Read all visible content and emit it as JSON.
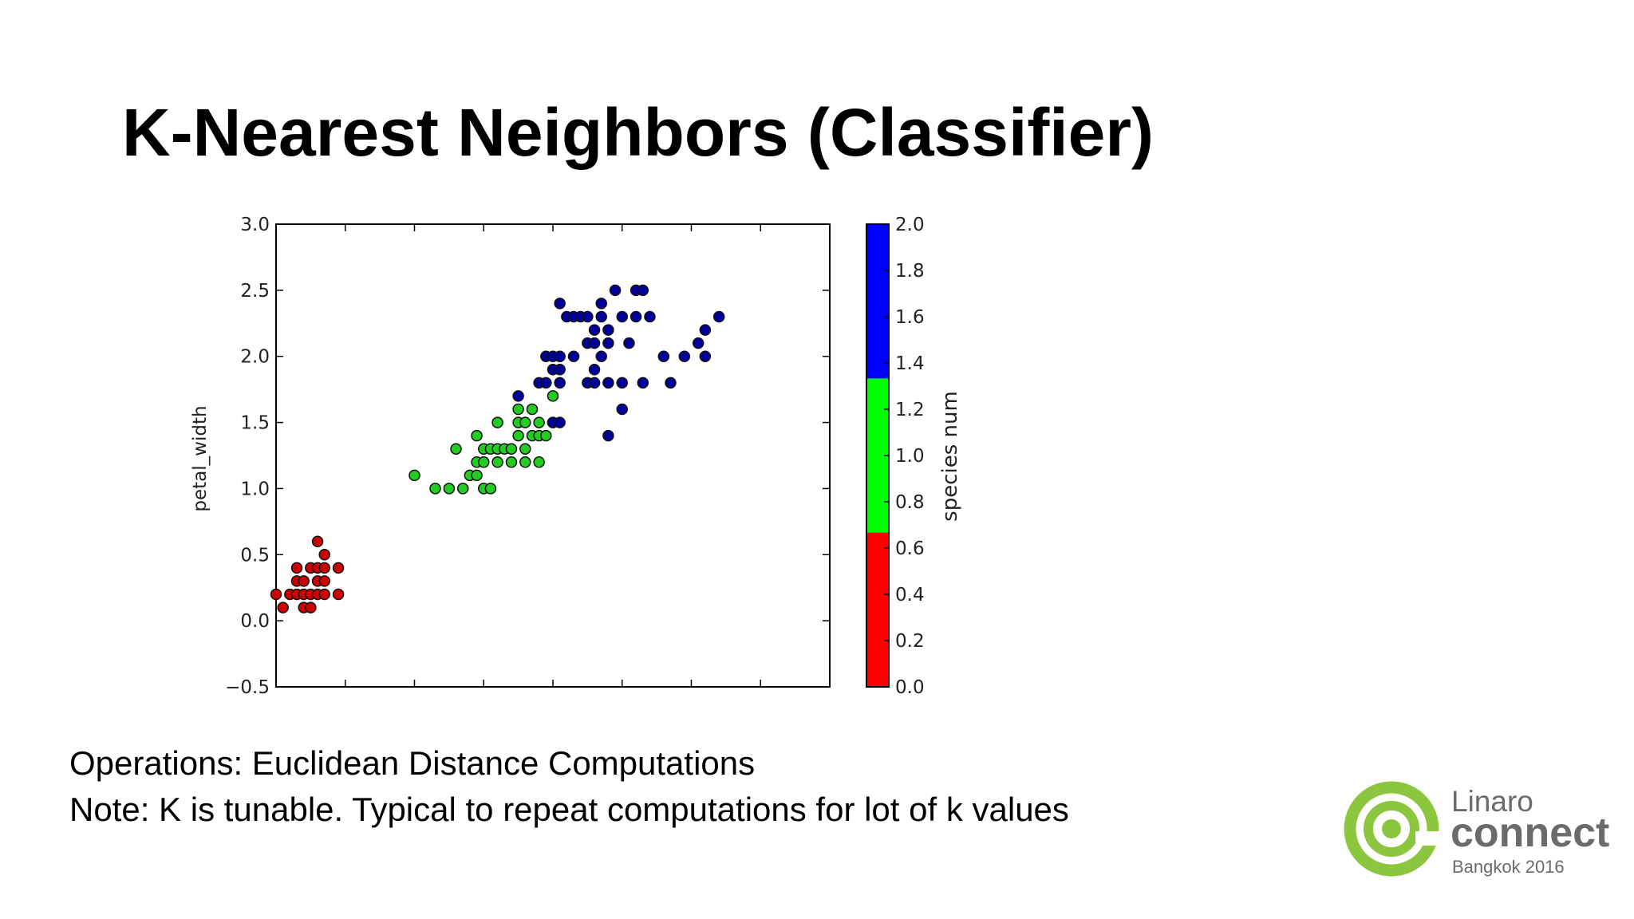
{
  "slide": {
    "title": "K-Nearest Neighbors (Classifier)",
    "notes": [
      "Operations: Euclidean Distance Computations",
      "Note: K is tunable. Typical to repeat computations for lot of k values"
    ]
  },
  "logo": {
    "brand": "Linaro",
    "product": "connect",
    "event": "Bangkok 2016",
    "icon": "linaro-logo-icon",
    "color": "#8cc63f"
  },
  "chart_data": {
    "type": "scatter",
    "ylabel": "petal_width",
    "xlim": [
      0,
      8
    ],
    "ylim": [
      -0.5,
      3.0
    ],
    "yticks": [
      "−0.5",
      "0.0",
      "0.5",
      "1.0",
      "1.5",
      "2.0",
      "2.5",
      "3.0"
    ],
    "yticks_values": [
      -0.5,
      0.0,
      0.5,
      1.0,
      1.5,
      2.0,
      2.5,
      3.0
    ],
    "xtick_values": [
      1,
      2,
      3,
      4,
      5,
      6,
      7
    ],
    "grid": false,
    "colorbar": {
      "label": "species num",
      "range": [
        0.0,
        2.0
      ],
      "ticks": [
        "0.0",
        "0.2",
        "0.4",
        "0.6",
        "0.8",
        "1.0",
        "1.2",
        "1.4",
        "1.6",
        "1.8",
        "2.0"
      ],
      "tick_values": [
        0.0,
        0.2,
        0.4,
        0.6,
        0.8,
        1.0,
        1.2,
        1.4,
        1.6,
        1.8,
        2.0
      ],
      "bands": [
        {
          "from": 0.0,
          "to": 0.667,
          "color": "#ff0000"
        },
        {
          "from": 0.667,
          "to": 1.333,
          "color": "#00ff00"
        },
        {
          "from": 1.333,
          "to": 2.0,
          "color": "#0000ff"
        }
      ]
    },
    "series": [
      {
        "color": "#cc0000",
        "points": [
          [
            0.0,
            0.2
          ],
          [
            0.1,
            0.1
          ],
          [
            0.2,
            0.2
          ],
          [
            0.3,
            0.2
          ],
          [
            0.3,
            0.3
          ],
          [
            0.3,
            0.4
          ],
          [
            0.4,
            0.1
          ],
          [
            0.4,
            0.2
          ],
          [
            0.4,
            0.3
          ],
          [
            0.5,
            0.1
          ],
          [
            0.5,
            0.2
          ],
          [
            0.5,
            0.4
          ],
          [
            0.6,
            0.2
          ],
          [
            0.6,
            0.3
          ],
          [
            0.6,
            0.4
          ],
          [
            0.6,
            0.6
          ],
          [
            0.7,
            0.2
          ],
          [
            0.7,
            0.3
          ],
          [
            0.7,
            0.5
          ],
          [
            0.7,
            0.4
          ],
          [
            0.9,
            0.2
          ],
          [
            0.9,
            0.4
          ]
        ]
      },
      {
        "color": "#22cc22",
        "points": [
          [
            2.0,
            1.1
          ],
          [
            2.3,
            1.0
          ],
          [
            2.5,
            1.0
          ],
          [
            2.6,
            1.3
          ],
          [
            2.7,
            1.0
          ],
          [
            2.8,
            1.1
          ],
          [
            2.9,
            1.1
          ],
          [
            2.9,
            1.2
          ],
          [
            2.9,
            1.4
          ],
          [
            3.0,
            1.0
          ],
          [
            3.0,
            1.2
          ],
          [
            3.0,
            1.3
          ],
          [
            3.1,
            1.0
          ],
          [
            3.1,
            1.3
          ],
          [
            3.2,
            1.2
          ],
          [
            3.2,
            1.3
          ],
          [
            3.2,
            1.5
          ],
          [
            3.3,
            1.3
          ],
          [
            3.4,
            1.2
          ],
          [
            3.4,
            1.3
          ],
          [
            3.5,
            1.4
          ],
          [
            3.5,
            1.5
          ],
          [
            3.5,
            1.6
          ],
          [
            3.6,
            1.2
          ],
          [
            3.6,
            1.3
          ],
          [
            3.6,
            1.5
          ],
          [
            3.7,
            1.4
          ],
          [
            3.7,
            1.6
          ],
          [
            3.8,
            1.2
          ],
          [
            3.8,
            1.4
          ],
          [
            3.8,
            1.5
          ],
          [
            3.9,
            1.4
          ],
          [
            4.0,
            1.5
          ],
          [
            4.0,
            1.7
          ]
        ]
      },
      {
        "color": "#000099",
        "points": [
          [
            3.5,
            1.7
          ],
          [
            3.8,
            1.8
          ],
          [
            3.9,
            1.8
          ],
          [
            3.9,
            2.0
          ],
          [
            4.0,
            1.5
          ],
          [
            4.0,
            1.9
          ],
          [
            4.0,
            2.0
          ],
          [
            4.1,
            1.5
          ],
          [
            4.1,
            1.8
          ],
          [
            4.1,
            1.9
          ],
          [
            4.1,
            2.0
          ],
          [
            4.1,
            2.4
          ],
          [
            4.2,
            2.3
          ],
          [
            4.3,
            2.3
          ],
          [
            4.3,
            2.0
          ],
          [
            4.4,
            2.3
          ],
          [
            4.5,
            2.3
          ],
          [
            4.5,
            2.1
          ],
          [
            4.5,
            1.8
          ],
          [
            4.6,
            1.8
          ],
          [
            4.6,
            2.1
          ],
          [
            4.6,
            2.2
          ],
          [
            4.6,
            1.9
          ],
          [
            4.7,
            2.0
          ],
          [
            4.7,
            2.3
          ],
          [
            4.7,
            2.4
          ],
          [
            4.8,
            2.1
          ],
          [
            4.8,
            1.8
          ],
          [
            4.8,
            2.2
          ],
          [
            4.8,
            1.4
          ],
          [
            4.9,
            2.5
          ],
          [
            5.0,
            2.3
          ],
          [
            5.0,
            1.6
          ],
          [
            5.0,
            1.8
          ],
          [
            5.1,
            2.1
          ],
          [
            5.2,
            2.3
          ],
          [
            5.2,
            2.5
          ],
          [
            5.3,
            2.5
          ],
          [
            5.3,
            1.8
          ],
          [
            5.4,
            2.3
          ],
          [
            5.6,
            2.0
          ],
          [
            5.7,
            1.8
          ],
          [
            5.9,
            2.0
          ],
          [
            6.1,
            2.1
          ],
          [
            6.2,
            2.0
          ],
          [
            6.2,
            2.2
          ],
          [
            6.4,
            2.3
          ]
        ]
      }
    ]
  }
}
